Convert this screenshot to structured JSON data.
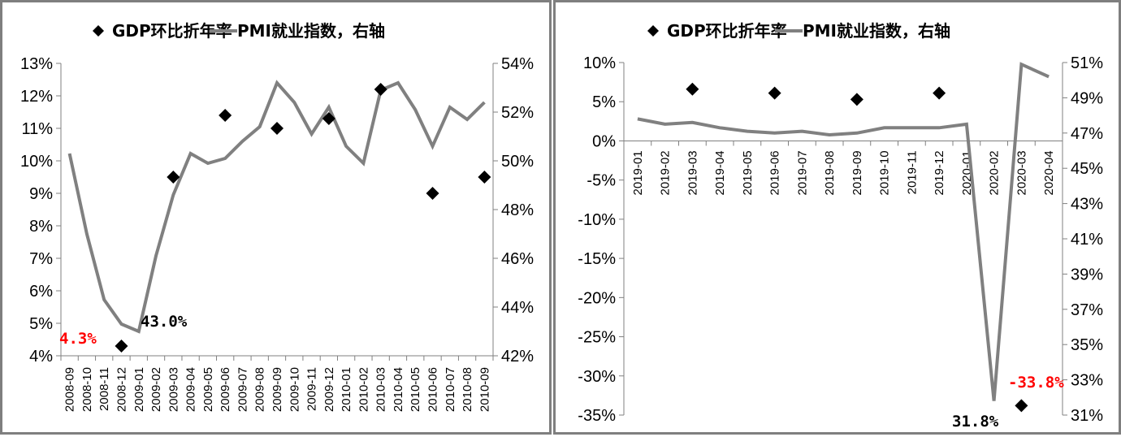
{
  "colors": {
    "pmi_line": "#808080",
    "gdp_marker": "#000000",
    "axis": "#808080",
    "highlight": "#ff0000",
    "border": "#7f7f7f"
  },
  "legend": {
    "gdp_label": "GDP环比折年率",
    "pmi_label": "PMI就业指数，右轴",
    "gdp_icon": "diamond-marker-icon",
    "pmi_icon": "line-swatch-icon"
  },
  "chart_data": [
    {
      "type": "line",
      "title": "",
      "legend_position": "top",
      "grid": false,
      "categories": [
        "2008-09",
        "2008-10",
        "2008-11",
        "2008-12",
        "2009-01",
        "2009-02",
        "2009-03",
        "2009-04",
        "2009-05",
        "2009-06",
        "2009-07",
        "2009-08",
        "2009-09",
        "2009-10",
        "2009-11",
        "2009-12",
        "2010-01",
        "2010-02",
        "2010-03",
        "2010-04",
        "2010-05",
        "2010-06",
        "2010-07",
        "2010-08",
        "2010-09"
      ],
      "left_axis": {
        "label": "",
        "ylim": [
          4,
          13
        ],
        "ticks": [
          "13%",
          "12%",
          "11%",
          "10%",
          "9%",
          "8%",
          "7%",
          "6%",
          "5%",
          "4%"
        ]
      },
      "right_axis": {
        "label": "",
        "ylim": [
          42,
          54
        ],
        "ticks": [
          "54%",
          "52%",
          "50%",
          "48%",
          "46%",
          "44%",
          "42%"
        ]
      },
      "series": [
        {
          "name": "GDP环比折年率",
          "type": "scatter",
          "axis": "left",
          "marker": "diamond",
          "values": [
            null,
            null,
            null,
            4.3,
            null,
            null,
            9.5,
            null,
            null,
            11.4,
            null,
            null,
            11.0,
            null,
            null,
            11.3,
            null,
            null,
            12.2,
            null,
            null,
            9.0,
            null,
            null,
            9.5
          ]
        },
        {
          "name": "PMI就业指数，右轴",
          "type": "line",
          "axis": "right",
          "values": [
            50.3,
            47.0,
            44.3,
            43.3,
            43.0,
            46.1,
            48.6,
            50.3,
            49.9,
            50.1,
            50.8,
            51.4,
            53.2,
            52.4,
            51.1,
            52.2,
            50.6,
            49.9,
            52.9,
            53.2,
            52.1,
            50.6,
            52.2,
            51.7,
            52.4
          ]
        }
      ],
      "annotations": [
        {
          "text": "4.3%",
          "color": "#ff0000",
          "target": "GDP 2008-12"
        },
        {
          "text": "43.0%",
          "color": "#000000",
          "target": "PMI 2009-01"
        }
      ]
    },
    {
      "type": "line",
      "title": "",
      "legend_position": "top",
      "grid": false,
      "categories": [
        "2019-01",
        "2019-02",
        "2019-03",
        "2019-04",
        "2019-05",
        "2019-06",
        "2019-07",
        "2019-08",
        "2019-09",
        "2019-10",
        "2019-11",
        "2019-12",
        "2020-01",
        "2020-02",
        "2020-03",
        "2020-04"
      ],
      "left_axis": {
        "label": "",
        "ylim": [
          -35,
          10
        ],
        "ticks": [
          "10%",
          "5%",
          "0%",
          "-5%",
          "-10%",
          "-15%",
          "-20%",
          "-25%",
          "-30%",
          "-35%"
        ]
      },
      "right_axis": {
        "label": "",
        "ylim": [
          31,
          51
        ],
        "ticks": [
          "51%",
          "49%",
          "47%",
          "45%",
          "43%",
          "41%",
          "39%",
          "37%",
          "35%",
          "33%",
          "31%"
        ]
      },
      "series": [
        {
          "name": "GDP环比折年率",
          "type": "scatter",
          "axis": "left",
          "marker": "diamond",
          "values": [
            null,
            null,
            6.6,
            null,
            null,
            6.1,
            null,
            null,
            5.3,
            null,
            null,
            6.1,
            null,
            null,
            -33.8,
            null
          ]
        },
        {
          "name": "PMI就业指数，右轴",
          "type": "line",
          "axis": "right",
          "values": [
            47.8,
            47.5,
            47.6,
            47.3,
            47.1,
            47.0,
            47.1,
            46.9,
            47.0,
            47.3,
            47.3,
            47.3,
            47.5,
            31.8,
            50.9,
            50.2
          ]
        }
      ],
      "annotations": [
        {
          "text": "-33.8%",
          "color": "#ff0000",
          "target": "GDP 2020-03"
        },
        {
          "text": "31.8%",
          "color": "#000000",
          "target": "PMI 2020-02"
        }
      ]
    }
  ]
}
